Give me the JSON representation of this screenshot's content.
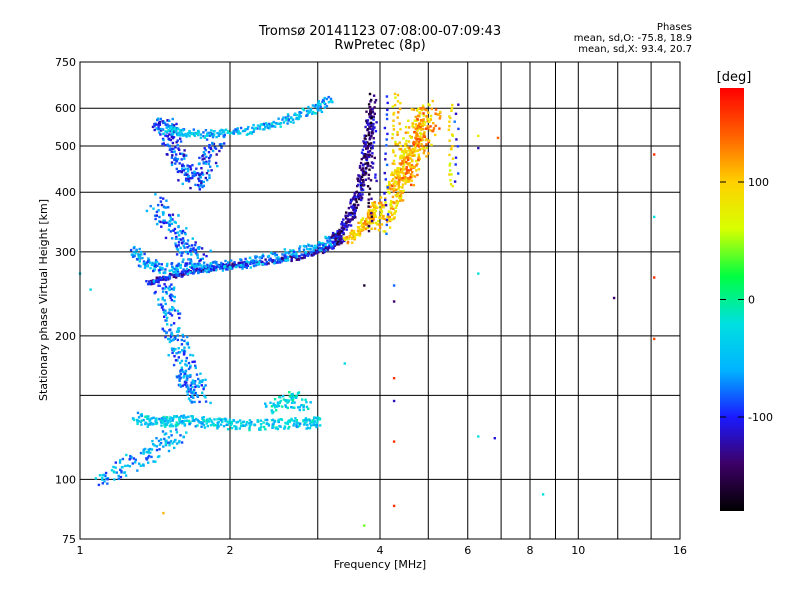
{
  "header": {
    "title_line1": "Tromsø 20141123 07:08:00-07:09:43",
    "title_line2": "RwPretec (8p)"
  },
  "phase_box": {
    "title": "Phases",
    "line_o": "mean, sd,O: -75.8, 18.9",
    "line_x": "mean, sd,X:  93.4, 20.7"
  },
  "chart_data": {
    "type": "scatter",
    "title": "Tromsø 20141123 07:08:00-07:09:43",
    "subtitle": "RwPretec (8p)",
    "xlabel": "Frequency [MHz]",
    "ylabel": "Stationary phase Virtual Height [km]",
    "x_scale": "log",
    "y_scale": "log",
    "xlim": [
      1,
      16
    ],
    "ylim": [
      75,
      750
    ],
    "x_ticks": [
      1,
      2,
      4,
      6,
      8,
      10,
      16
    ],
    "x_ticks_minor": [
      3,
      5,
      7,
      9,
      12,
      14
    ],
    "y_ticks": [
      75,
      100,
      200,
      300,
      400,
      500,
      600,
      750
    ],
    "y_ticks_minor": [
      150
    ],
    "grid": true,
    "colorbar": {
      "label": "[deg]",
      "range": [
        -180,
        180
      ],
      "ticks": [
        100,
        0,
        -100
      ],
      "colors": [
        "#000000",
        "#3d0066",
        "#1a1aff",
        "#00b4ff",
        "#00e0e0",
        "#00ff40",
        "#d8ff00",
        "#ffd000",
        "#ff6000",
        "#ff0000"
      ]
    },
    "series": [
      {
        "traces": [
          {
            "x": [
              1.37,
              1.44,
              1.55,
              1.68,
              1.82,
              1.98,
              2.18,
              2.45,
              2.75,
              3.0,
              3.2,
              3.38
            ],
            "y": [
              258,
              262,
              268,
              273,
              277,
              280,
              283,
              287,
              292,
              300,
              308,
              318
            ],
            "spread": 0.012,
            "phase": -110,
            "n": 4
          },
          {
            "x": [
              1.28,
              1.35,
              1.45,
              1.6,
              1.8,
              2.05,
              2.3,
              2.6,
              2.9,
              3.15,
              3.35
            ],
            "y": [
              300,
              285,
              278,
              276,
              278,
              282,
              288,
              295,
              305,
              315,
              328
            ],
            "spread": 0.025,
            "phase": -60,
            "n": 4
          },
          {
            "x": [
              3.25,
              3.38,
              3.5,
              3.6,
              3.68,
              3.75,
              3.8,
              3.84
            ],
            "y": [
              318,
              335,
              360,
              390,
              430,
              480,
              540,
              610
            ],
            "spread": 0.02,
            "phase": -130,
            "n": 5
          },
          {
            "x": [
              3.45,
              3.6,
              3.75,
              3.85,
              3.95
            ],
            "y": [
              318,
              330,
              345,
              360,
              380
            ],
            "spread": 0.02,
            "phase": 100,
            "n": 4
          },
          {
            "x": [
              4.0,
              4.15,
              4.3,
              4.45,
              4.6,
              4.75,
              4.9
            ],
            "y": [
              340,
              370,
              400,
              440,
              490,
              550,
              610
            ],
            "spread": 0.045,
            "phase": 95,
            "n": 6
          },
          {
            "x": [
              1.45,
              1.5,
              1.55,
              1.6,
              1.7,
              1.8,
              1.9
            ],
            "y": [
              560,
              540,
              500,
              450,
              420,
              460,
              520
            ],
            "spread": 0.04,
            "phase": -90,
            "n": 5
          },
          {
            "x": [
              1.5,
              1.6,
              1.75,
              1.95,
              2.2,
              2.45,
              2.7,
              3.0,
              3.2
            ],
            "y": [
              540,
              535,
              530,
              532,
              540,
              555,
              575,
              600,
              625
            ],
            "spread": 0.02,
            "phase": -50,
            "n": 4
          },
          {
            "x": [
              1.42,
              1.5,
              1.58,
              1.65,
              1.72,
              1.8
            ],
            "y": [
              380,
              350,
              320,
              300,
              290,
              285
            ],
            "spread": 0.05,
            "phase": -80,
            "n": 4
          },
          {
            "x": [
              1.45,
              1.5,
              1.55,
              1.6,
              1.65,
              1.7,
              1.75
            ],
            "y": [
              260,
              230,
              200,
              180,
              165,
              155,
              150
            ],
            "spread": 0.05,
            "phase": -70,
            "n": 5
          },
          {
            "x": [
              1.3,
              1.4,
              1.5,
              1.6,
              1.75,
              1.9,
              2.1,
              2.35,
              2.6,
              2.85,
              3.05
            ],
            "y": [
              135,
              132,
              132,
              133,
              132,
              131,
              130,
              130,
              131,
              131,
              132
            ],
            "spread": 0.025,
            "phase": -40,
            "n": 4
          },
          {
            "x": [
              1.1,
              1.2,
              1.3,
              1.4,
              1.5,
              1.6
            ],
            "y": [
              100,
              105,
              110,
              115,
              120,
              125
            ],
            "spread": 0.04,
            "phase": -60,
            "n": 3
          },
          {
            "x": [
              2.4,
              2.55,
              2.7,
              2.85
            ],
            "y": [
              140,
              145,
              148,
              142
            ],
            "spread": 0.03,
            "phase": -30,
            "n": 3
          },
          {
            "x": [
              4.4,
              4.5,
              4.6,
              4.7,
              4.8,
              4.9,
              5.0,
              5.1
            ],
            "y": [
              420,
              440,
              460,
              480,
              500,
              520,
              560,
              600
            ],
            "spread": 0.05,
            "phase": 120,
            "n": 3
          }
        ],
        "columns": [
          {
            "x": 3.82,
            "y_from": 330,
            "y_to": 640,
            "phase": -150,
            "n": 36
          },
          {
            "x": 3.9,
            "y_from": 420,
            "y_to": 640,
            "phase": -120,
            "n": 20
          },
          {
            "x": 4.12,
            "y_from": 330,
            "y_to": 640,
            "phase": -100,
            "n": 22
          },
          {
            "x": 4.27,
            "y_from": 420,
            "y_to": 640,
            "phase": 90,
            "n": 22
          },
          {
            "x": 4.38,
            "y_from": 400,
            "y_to": 640,
            "phase": 110,
            "n": 22
          },
          {
            "x": 5.55,
            "y_from": 410,
            "y_to": 610,
            "phase": 80,
            "n": 24
          },
          {
            "x": 5.7,
            "y_from": 420,
            "y_to": 610,
            "phase": -100,
            "n": 10
          }
        ],
        "isolated": [
          {
            "x": 4.27,
            "y": 255,
            "phase": -80
          },
          {
            "x": 4.27,
            "y": 236,
            "phase": -140
          },
          {
            "x": 4.27,
            "y": 163,
            "phase": 160
          },
          {
            "x": 4.27,
            "y": 146,
            "phase": -120
          },
          {
            "x": 4.27,
            "y": 120,
            "phase": 160
          },
          {
            "x": 4.27,
            "y": 88,
            "phase": 160
          },
          {
            "x": 3.72,
            "y": 255,
            "phase": -160
          },
          {
            "x": 3.72,
            "y": 80,
            "phase": 40
          },
          {
            "x": 3.4,
            "y": 175,
            "phase": -30
          },
          {
            "x": 6.3,
            "y": 270,
            "phase": -20
          },
          {
            "x": 6.3,
            "y": 123,
            "phase": -20
          },
          {
            "x": 6.8,
            "y": 122,
            "phase": -110
          },
          {
            "x": 6.3,
            "y": 525,
            "phase": 80
          },
          {
            "x": 6.9,
            "y": 520,
            "phase": 140
          },
          {
            "x": 6.3,
            "y": 495,
            "phase": -120
          },
          {
            "x": 8.5,
            "y": 93,
            "phase": -20
          },
          {
            "x": 11.8,
            "y": 240,
            "phase": -140
          },
          {
            "x": 14.2,
            "y": 480,
            "phase": 160
          },
          {
            "x": 14.2,
            "y": 355,
            "phase": -20
          },
          {
            "x": 14.2,
            "y": 265,
            "phase": 160
          },
          {
            "x": 14.2,
            "y": 197,
            "phase": 150
          },
          {
            "x": 1.47,
            "y": 85,
            "phase": 110
          },
          {
            "x": 1.0,
            "y": 270,
            "phase": -30
          },
          {
            "x": 1.05,
            "y": 250,
            "phase": -30
          }
        ]
      }
    ]
  }
}
